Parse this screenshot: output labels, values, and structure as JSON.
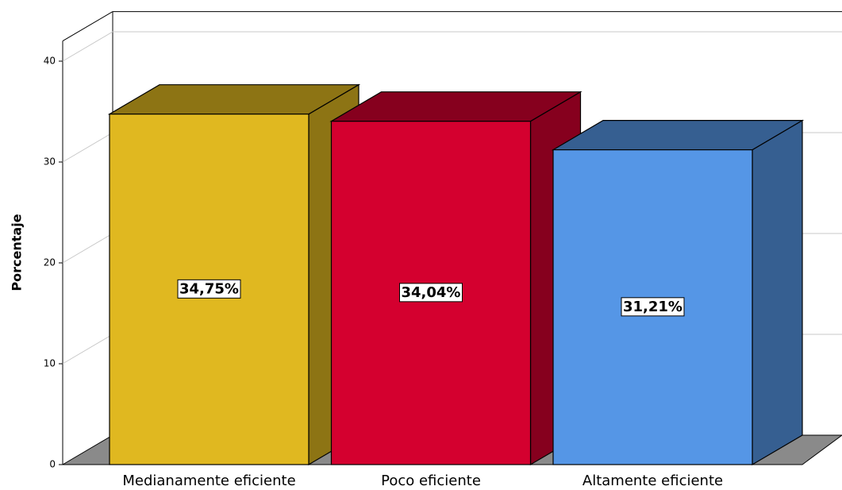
{
  "chart_data": {
    "type": "bar3d",
    "y_label": "Porcentaje",
    "categories": [
      "Medianamente eficiente",
      "Poco eficiente",
      "Altamente eficiente"
    ],
    "values": [
      34.75,
      34.04,
      31.21
    ],
    "value_labels": [
      "34,75%",
      "34,04%",
      "31,21%"
    ],
    "colors": [
      "#e0b820",
      "#d4002f",
      "#5596e6"
    ],
    "ylim": [
      0,
      42
    ],
    "yticks": [
      0,
      10,
      20,
      30,
      40
    ],
    "grid": true
  }
}
